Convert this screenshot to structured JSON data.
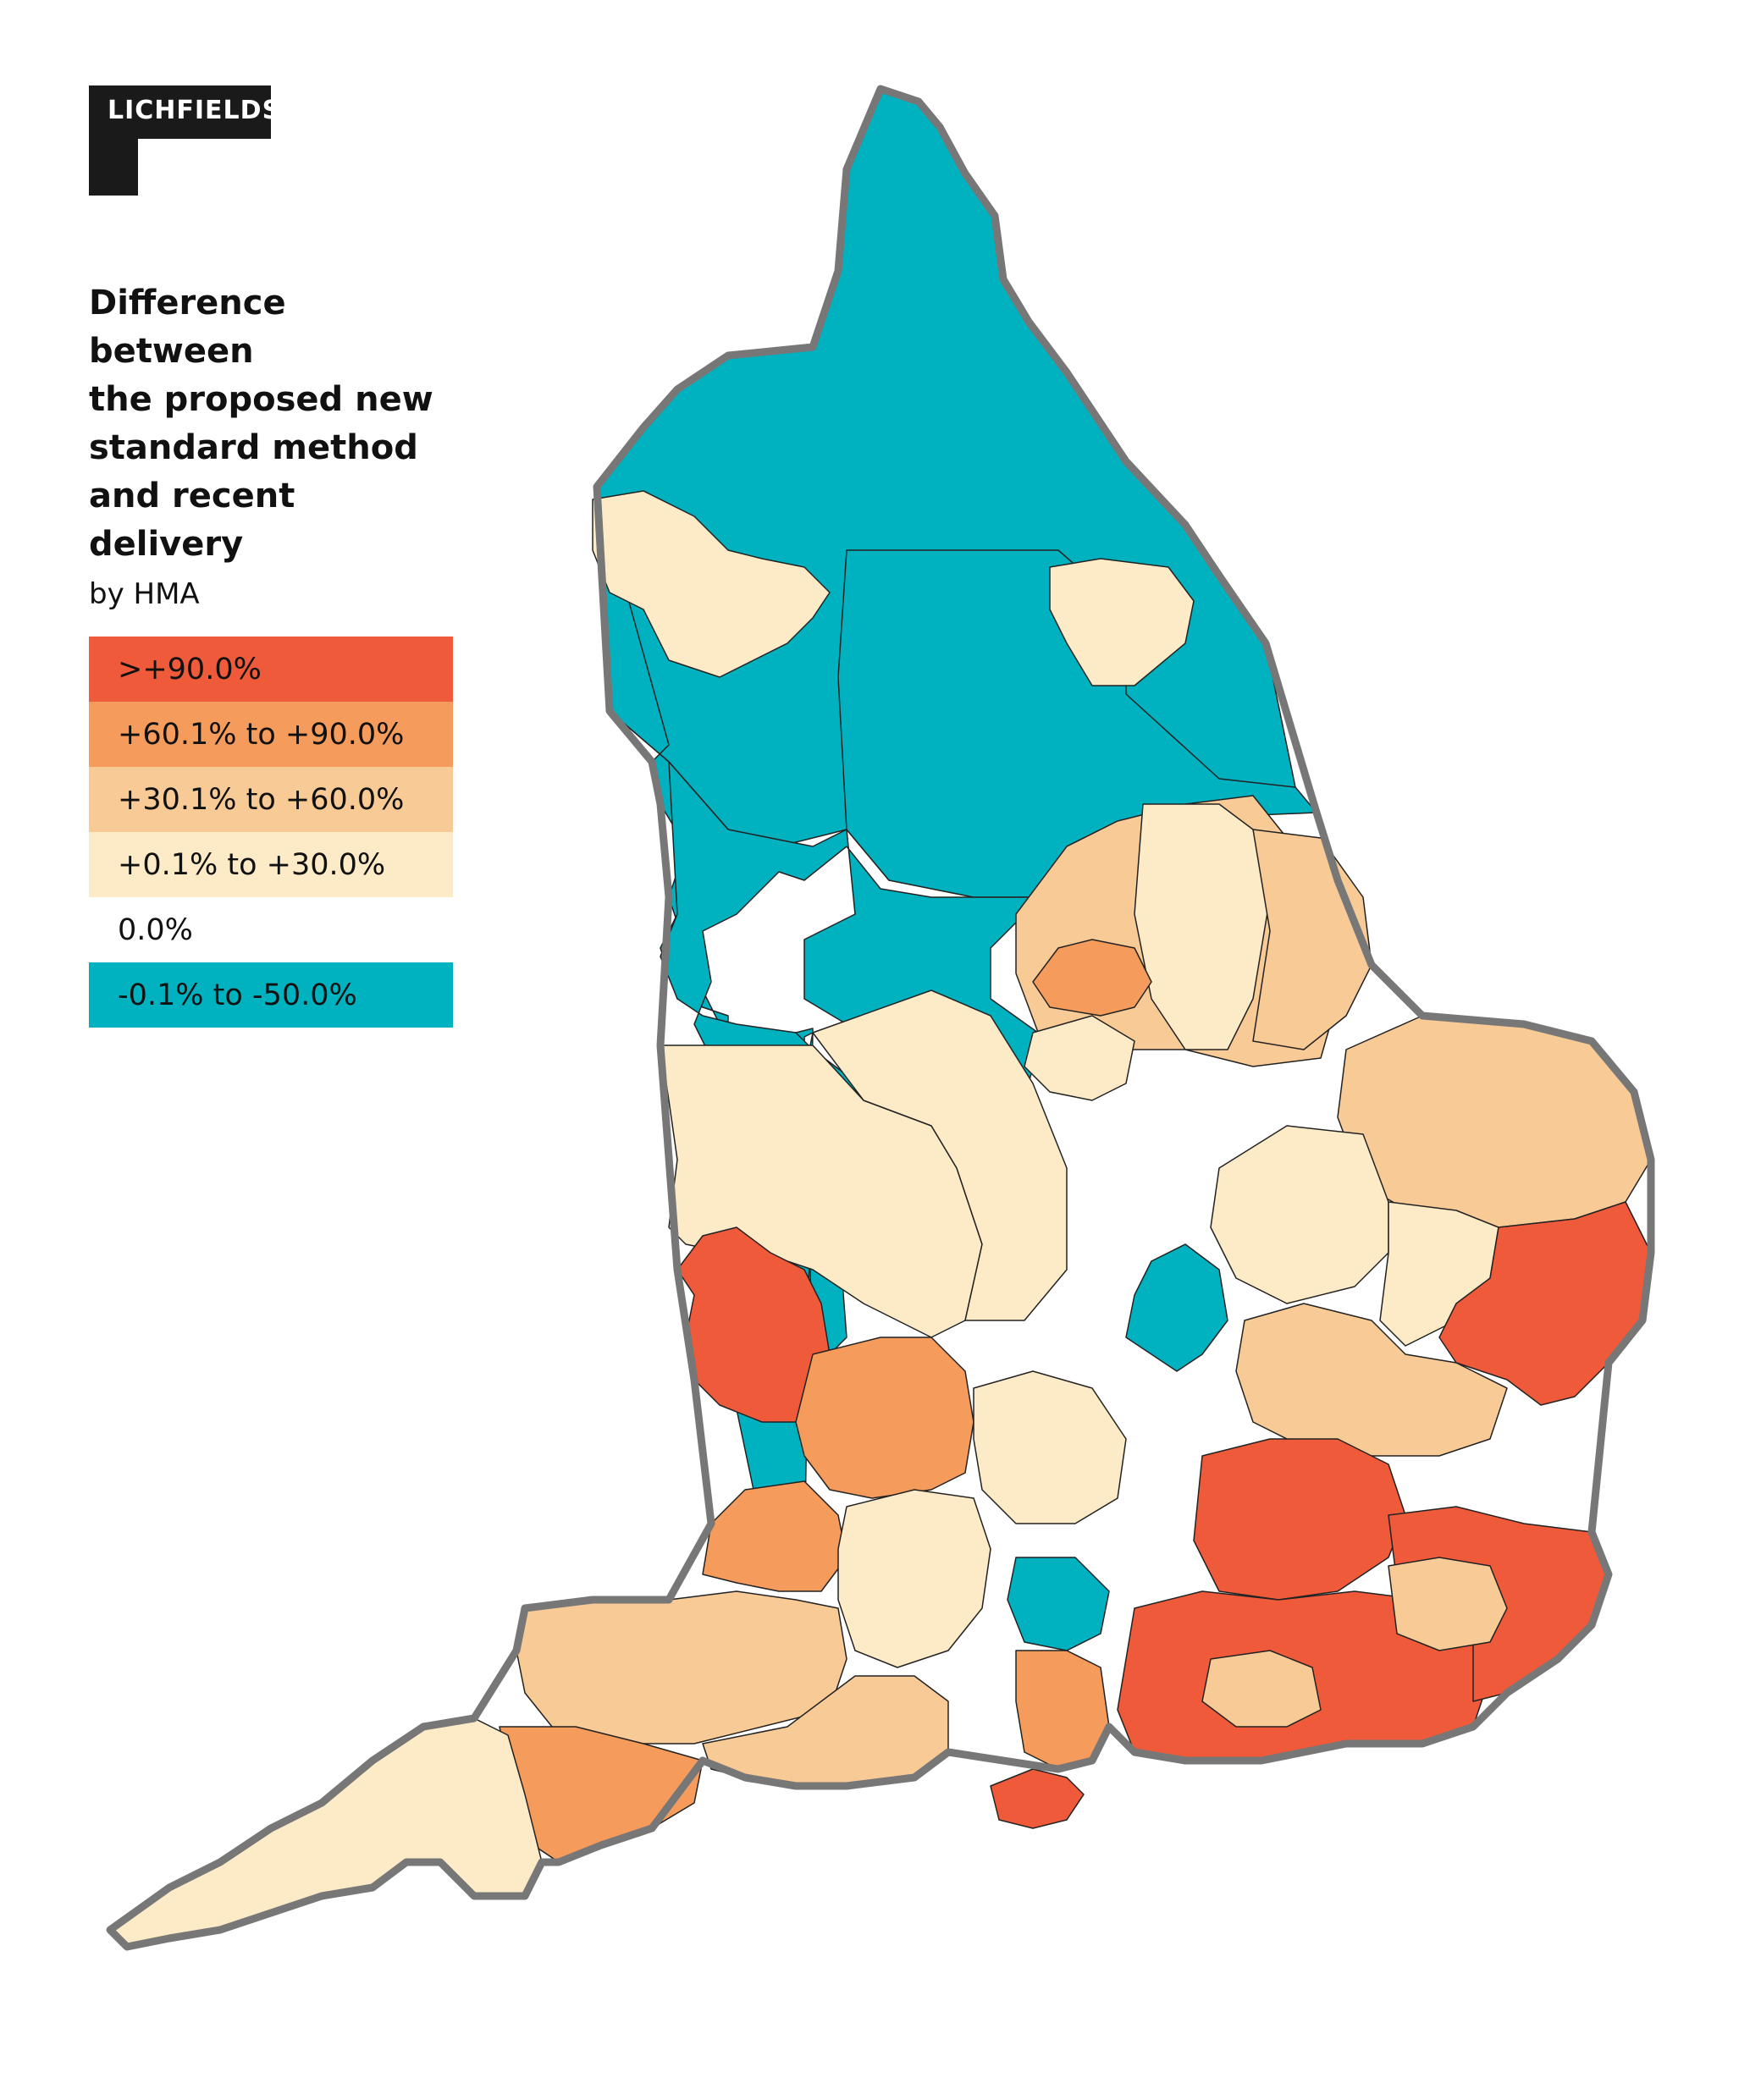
{
  "logo": {
    "text": "LICHFIELDS"
  },
  "legend": {
    "title": "Difference between\nthe proposed new\nstandard method\nand recent delivery",
    "subtitle": "by HMA",
    "items": [
      {
        "label": ">+90.0%",
        "color": "#ef5a3a"
      },
      {
        "label": "+60.1% to +90.0%",
        "color": "#f59b5c"
      },
      {
        "label": "+30.1% to +60.0%",
        "color": "#f8ca96"
      },
      {
        "label": "+0.1% to +30.0%",
        "color": "#fdebc8"
      },
      {
        "label": "0.0%",
        "color": "#ffffff"
      },
      {
        "label": "-0.1% to -50.0%",
        "color": "#00b1bf"
      }
    ]
  }
}
